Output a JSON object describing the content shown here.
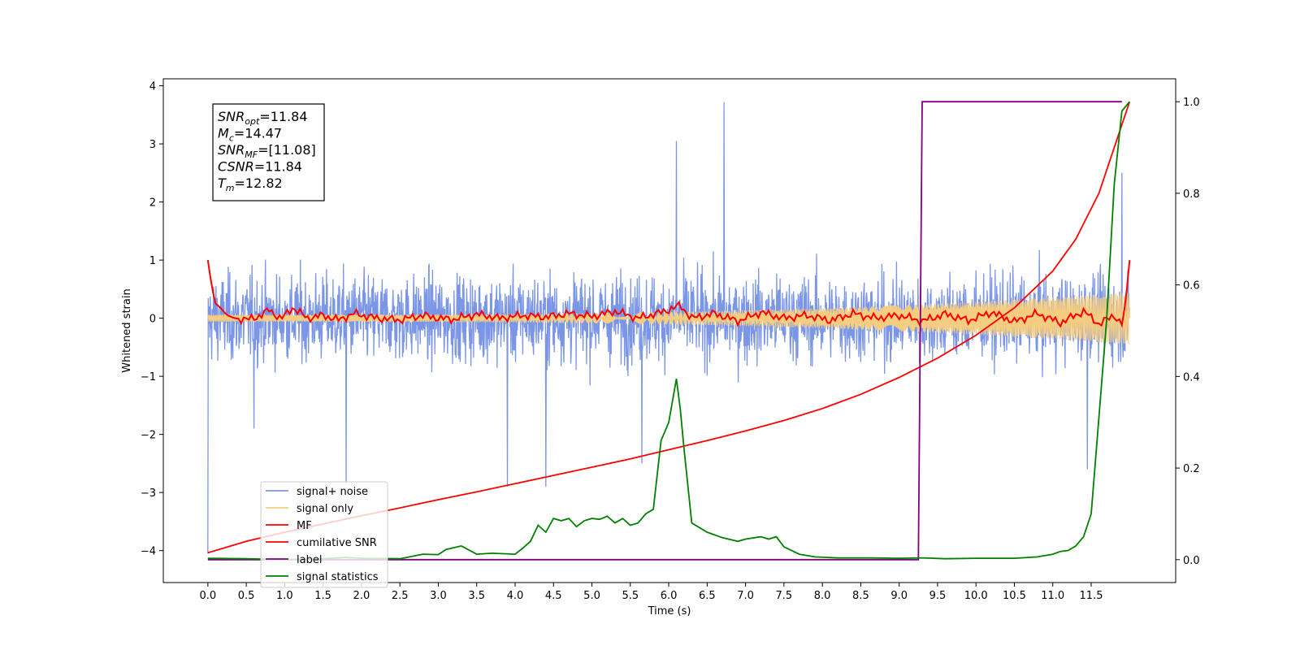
{
  "chart_data": {
    "type": "line",
    "xlabel": "Time (s)",
    "ylabel": "Whitened strain",
    "xlim": [
      -0.58,
      12.6
    ],
    "ylim": [
      -4.55,
      4.12
    ],
    "y2lim": [
      -0.05,
      1.05
    ],
    "x_ticks": [
      0.0,
      0.5,
      1.0,
      1.5,
      2.0,
      2.5,
      3.0,
      3.5,
      4.0,
      4.5,
      5.0,
      5.5,
      6.0,
      6.5,
      7.0,
      7.5,
      8.0,
      8.5,
      9.0,
      9.5,
      10.0,
      10.5,
      11.0,
      11.5
    ],
    "x_tick_labels": [
      "0.0",
      "0.5",
      "1.0",
      "1.5",
      "2.0",
      "2.5",
      "3.0",
      "3.5",
      "4.0",
      "4.5",
      "5.0",
      "5.5",
      "6.0",
      "6.5",
      "7.0",
      "7.5",
      "8.0",
      "8.5",
      "9.0",
      "9.5",
      "10.0",
      "10.5",
      "11.0",
      "11.5"
    ],
    "y_ticks": [
      -4,
      -3,
      -2,
      -1,
      0,
      1,
      2,
      3,
      4
    ],
    "y_tick_labels": [
      "−4",
      "−3",
      "−2",
      "−1",
      "0",
      "1",
      "2",
      "3",
      "4"
    ],
    "y2_ticks": [
      0.0,
      0.2,
      0.4,
      0.6,
      0.8,
      1.0
    ],
    "y2_tick_labels": [
      "0.0",
      "0.2",
      "0.4",
      "0.6",
      "0.8",
      "1.0"
    ],
    "legend_position": "lower-left",
    "annotation": [
      {
        "sym": "SNR",
        "sub": "opt",
        "value": "=11.84"
      },
      {
        "sym": "M",
        "sub": "c",
        "value": "=14.47"
      },
      {
        "sym": "SNR",
        "sub": "MF",
        "value": "=[11.08]"
      },
      {
        "sym": "CSNR",
        "sub": "",
        "value": "=11.84"
      },
      {
        "sym": "T",
        "sub": "m",
        "value": "=12.82"
      }
    ],
    "series": [
      {
        "name": "signal+ noise",
        "color": "#7b96e6",
        "axis": "left",
        "style": "noise",
        "x_range": [
          0.0,
          12.0
        ],
        "spread": 1.6,
        "spikes": [
          [
            0.0,
            -4.05
          ],
          [
            0.6,
            -1.9
          ],
          [
            1.8,
            -2.85
          ],
          [
            3.9,
            -2.9
          ],
          [
            4.4,
            -2.9
          ],
          [
            5.65,
            -2.5
          ],
          [
            6.1,
            3.05
          ],
          [
            6.72,
            3.72
          ],
          [
            11.45,
            -2.6
          ],
          [
            11.9,
            2.5
          ]
        ]
      },
      {
        "name": "signal only",
        "color": "#f5cd80",
        "axis": "left",
        "style": "chirp",
        "x_range": [
          0.0,
          12.0
        ],
        "amp_start": 0.06,
        "amp_end": 0.45
      },
      {
        "name": "MF",
        "color": "#ff0000",
        "axis": "left",
        "style": "mf",
        "x": [
          0.0,
          0.05,
          0.1,
          0.15,
          0.25,
          0.35,
          0.5,
          0.7,
          0.8,
          0.95,
          1.1,
          1.3,
          1.5,
          1.7,
          1.9,
          2.2,
          2.5,
          2.8,
          3.0,
          3.2,
          3.5,
          3.8,
          4.1,
          4.4,
          4.7,
          5.0,
          5.3,
          5.6,
          5.9,
          6.15,
          6.3,
          6.6,
          6.9,
          7.2,
          7.5,
          7.8,
          8.1,
          8.4,
          8.7,
          9.0,
          9.3,
          9.6,
          9.9,
          10.2,
          10.5,
          10.8,
          11.1,
          11.4,
          11.6,
          11.8,
          11.9,
          11.95,
          12.0
        ],
        "y": [
          1.0,
          0.55,
          0.25,
          0.2,
          0.05,
          0.0,
          -0.03,
          0.05,
          0.15,
          -0.02,
          0.18,
          0.0,
          0.05,
          -0.03,
          0.08,
          0.0,
          -0.03,
          0.05,
          0.0,
          -0.02,
          0.07,
          0.0,
          0.05,
          0.02,
          0.08,
          0.03,
          0.12,
          0.0,
          0.1,
          0.22,
          0.0,
          0.08,
          -0.05,
          0.1,
          0.0,
          0.05,
          -0.04,
          0.08,
          0.0,
          0.05,
          -0.05,
          0.07,
          -0.04,
          0.1,
          -0.06,
          0.08,
          -0.08,
          0.12,
          -0.1,
          0.05,
          -0.12,
          0.3,
          1.0
        ],
        "noisy": true
      },
      {
        "name": "cumilative SNR",
        "color": "#ff0000",
        "axis": "right",
        "x": [
          0.0,
          0.5,
          1.0,
          1.5,
          2.0,
          2.5,
          3.0,
          3.5,
          4.0,
          4.5,
          5.0,
          5.5,
          6.0,
          6.5,
          7.0,
          7.5,
          8.0,
          8.5,
          9.0,
          9.5,
          10.0,
          10.5,
          11.0,
          11.3,
          11.6,
          11.8,
          12.0
        ],
        "y": [
          0.015,
          0.04,
          0.06,
          0.078,
          0.096,
          0.113,
          0.131,
          0.148,
          0.166,
          0.184,
          0.202,
          0.22,
          0.24,
          0.26,
          0.281,
          0.304,
          0.33,
          0.361,
          0.398,
          0.44,
          0.49,
          0.55,
          0.63,
          0.7,
          0.8,
          0.9,
          1.0
        ]
      },
      {
        "name": "label",
        "color": "#800080",
        "axis": "right",
        "x": [
          0.0,
          9.25,
          9.3,
          11.9
        ],
        "y": [
          0.0,
          0.0,
          1.0,
          1.0
        ]
      },
      {
        "name": "signal statistics",
        "color": "#008000",
        "axis": "right",
        "x": [
          0.0,
          0.5,
          1.0,
          1.5,
          1.8,
          2.0,
          2.5,
          2.8,
          3.0,
          3.1,
          3.3,
          3.5,
          3.7,
          4.0,
          4.1,
          4.2,
          4.3,
          4.4,
          4.5,
          4.6,
          4.7,
          4.8,
          4.9,
          5.0,
          5.1,
          5.2,
          5.3,
          5.4,
          5.5,
          5.6,
          5.7,
          5.8,
          5.9,
          6.0,
          6.1,
          6.15,
          6.2,
          6.3,
          6.5,
          6.7,
          6.9,
          7.0,
          7.2,
          7.3,
          7.4,
          7.5,
          7.7,
          7.9,
          8.2,
          8.6,
          9.0,
          9.3,
          9.6,
          10.0,
          10.5,
          10.8,
          11.0,
          11.1,
          11.2,
          11.3,
          11.4,
          11.5,
          11.6,
          11.7,
          11.8,
          11.9,
          12.0
        ],
        "y": [
          0.003,
          0.002,
          0.0,
          0.002,
          0.005,
          0.003,
          0.002,
          0.012,
          0.011,
          0.022,
          0.03,
          0.012,
          0.014,
          0.012,
          0.025,
          0.04,
          0.075,
          0.06,
          0.09,
          0.085,
          0.09,
          0.072,
          0.085,
          0.09,
          0.088,
          0.095,
          0.08,
          0.09,
          0.075,
          0.08,
          0.1,
          0.11,
          0.26,
          0.3,
          0.395,
          0.33,
          0.24,
          0.08,
          0.06,
          0.048,
          0.04,
          0.045,
          0.05,
          0.045,
          0.05,
          0.028,
          0.012,
          0.006,
          0.004,
          0.004,
          0.003,
          0.004,
          0.002,
          0.003,
          0.003,
          0.006,
          0.012,
          0.018,
          0.02,
          0.03,
          0.05,
          0.1,
          0.31,
          0.52,
          0.82,
          0.98,
          1.0
        ]
      }
    ]
  }
}
